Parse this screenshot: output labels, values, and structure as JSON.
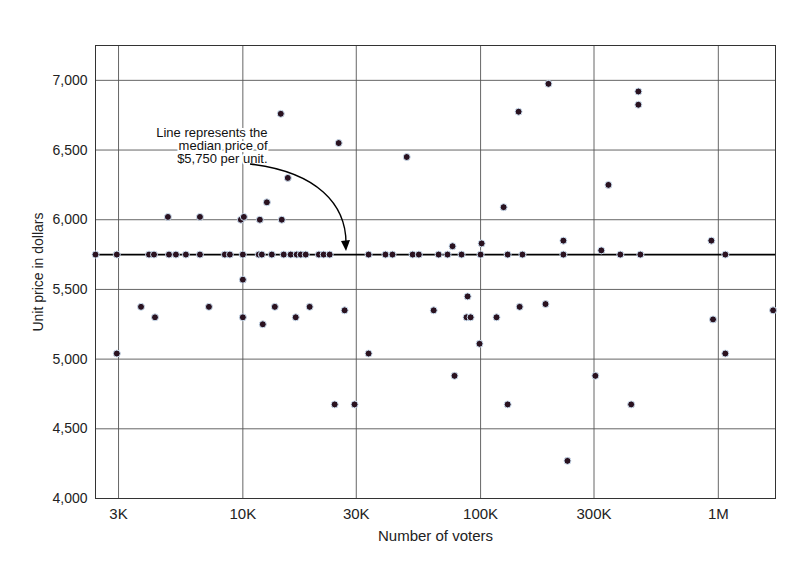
{
  "chart_data": {
    "type": "scatter",
    "x_label": "Number of voters",
    "y_label": "Unit price in dollars",
    "annotation": "Line represents the\nmedian price of\n$5,750 per unit.",
    "median": 5750,
    "x": [
      2400,
      2950,
      2950,
      3730,
      4030,
      4230,
      4270,
      4840,
      4890,
      5230,
      5760,
      6600,
      6600,
      7200,
      8400,
      8820,
      9810,
      10100,
      10000,
      10000,
      10000,
      11670,
      11790,
      12020,
      12130,
      12620,
      13240,
      13630,
      14440,
      14580,
      14860,
      15460,
      15900,
      16690,
      16850,
      17520,
      18390,
      19100,
      20880,
      21870,
      23190,
      24340,
      25300,
      26800,
      29500,
      33800,
      33800,
      39800,
      42600,
      48900,
      51800,
      55000,
      63500,
      66600,
      72600,
      76200,
      77700,
      83200,
      87300,
      88200,
      90800,
      100000,
      101000,
      99000,
      116700,
      125000,
      130000,
      130000,
      144500,
      146000,
      150000,
      187600,
      193000,
      223000,
      223000,
      232000,
      304000,
      322000,
      345000,
      387000,
      430000,
      461000,
      461000,
      470000,
      935000,
      950000,
      1070000,
      1070000,
      1700000
    ],
    "values": [
      5750,
      5040,
      5750,
      5375,
      5750,
      5750,
      5300,
      6020,
      5750,
      5750,
      5750,
      6020,
      5750,
      5375,
      5750,
      5750,
      6000,
      6020,
      5750,
      5570,
      5300,
      5750,
      6000,
      5750,
      5250,
      6125,
      5750,
      5375,
      6760,
      6000,
      5750,
      6300,
      5750,
      5300,
      5750,
      5750,
      5750,
      5375,
      5750,
      5750,
      5750,
      4675,
      6550,
      5350,
      4675,
      5040,
      5750,
      5750,
      5750,
      6450,
      5750,
      5750,
      5350,
      5750,
      5750,
      5810,
      4880,
      5750,
      5300,
      5450,
      5300,
      5750,
      5830,
      5110,
      5300,
      6090,
      5750,
      4675,
      6775,
      5375,
      5750,
      5395,
      6975,
      5850,
      5750,
      4270,
      4880,
      5780,
      6250,
      5750,
      4675,
      6825,
      6920,
      5750,
      5850,
      5285,
      5750,
      5040,
      5350
    ],
    "color": "#2a1220",
    "marker": "circle",
    "log": "x",
    "grid": true,
    "xlim": [
      2400,
      1740000
    ],
    "xticks": [
      {
        "value": 3000,
        "label": "3K"
      },
      {
        "value": 10000,
        "label": "10K"
      },
      {
        "value": 30000,
        "label": "30K"
      },
      {
        "value": 100000,
        "label": "100K"
      },
      {
        "value": 300000,
        "label": "300K"
      },
      {
        "value": 1000000,
        "label": "1M"
      }
    ],
    "ylim": [
      4000,
      7250
    ],
    "yticks": [
      {
        "value": 4000,
        "label": "4,000"
      },
      {
        "value": 4500,
        "label": "4,500"
      },
      {
        "value": 5000,
        "label": "5,000"
      },
      {
        "value": 5500,
        "label": "5,500"
      },
      {
        "value": 6000,
        "label": "6,000"
      },
      {
        "value": 6500,
        "label": "6,500"
      },
      {
        "value": 7000,
        "label": "7,000"
      }
    ]
  }
}
